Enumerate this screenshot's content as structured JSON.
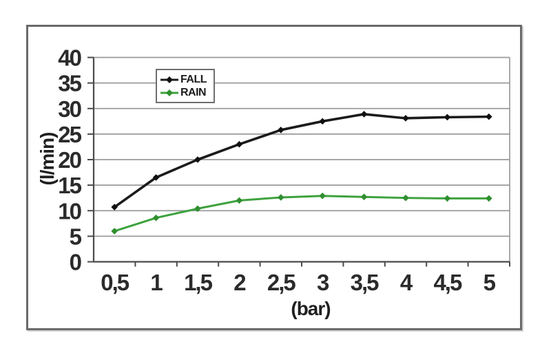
{
  "figure": {
    "background": "#ffffff",
    "frame_color": "#6a6a6a"
  },
  "chart_data": {
    "type": "line",
    "title": "",
    "xlabel": "(bar)",
    "ylabel": "(l/min)",
    "x_values": [
      0.5,
      1,
      1.5,
      2,
      2.5,
      3,
      3.5,
      4,
      4.5,
      5
    ],
    "x_tick_labels": [
      "0,5",
      "1",
      "1,5",
      "2",
      "2,5",
      "3",
      "3,5",
      "4",
      "4,5",
      "5"
    ],
    "y_ticks": [
      0,
      5,
      10,
      15,
      20,
      25,
      30,
      35,
      40
    ],
    "ylim": [
      0,
      40
    ],
    "grid": "horizontal",
    "gridline_color": "#9a9a9a",
    "axis_color": "#4a4a4a",
    "legend_position": "inside-top-left",
    "series": [
      {
        "name": "FALL",
        "color": "#1b1b1b",
        "marker": "diamond",
        "marker_color": "#111111",
        "line_width": 3.6,
        "values": [
          10.7,
          16.5,
          20.0,
          23.0,
          25.8,
          27.5,
          28.9,
          28.1,
          28.3,
          28.4
        ]
      },
      {
        "name": "RAIN",
        "color": "#3da23d",
        "marker": "diamond",
        "marker_color": "#2f8f2f",
        "line_width": 3.0,
        "values": [
          6.0,
          8.6,
          10.4,
          12.0,
          12.6,
          12.9,
          12.7,
          12.5,
          12.4,
          12.4
        ]
      }
    ]
  }
}
